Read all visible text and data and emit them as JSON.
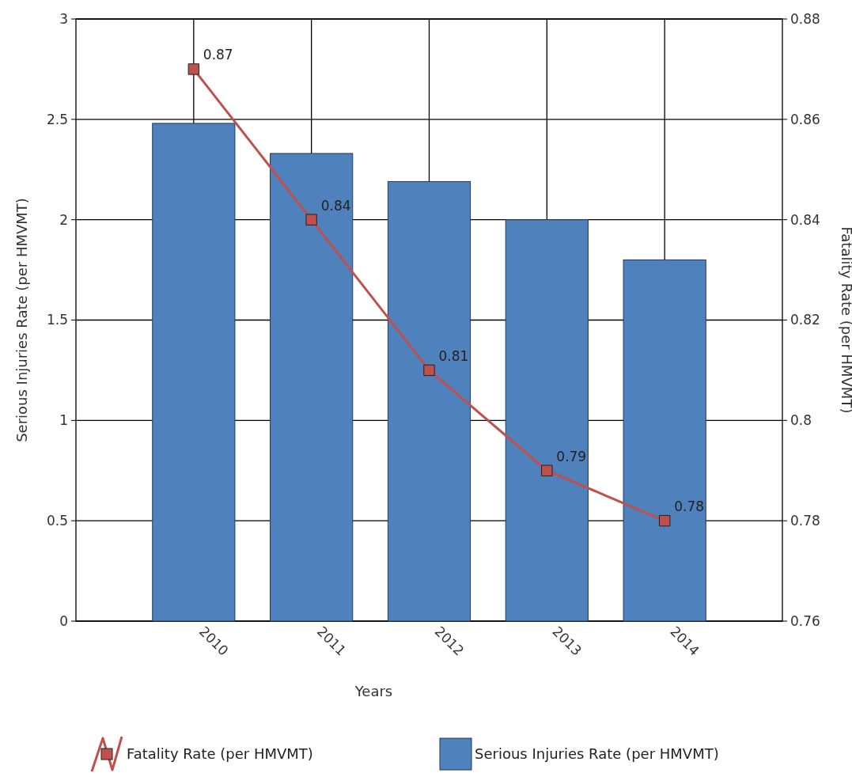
{
  "chart_data": {
    "type": "bar",
    "xlabel": "Years",
    "ylabel": "Serious Injuries Rate (per HMVMT)",
    "y2label": "Fatality Rate (per HMVMT)",
    "categories": [
      "2010",
      "2011",
      "2012",
      "2013",
      "2014"
    ],
    "series": [
      {
        "name": "Fatality Rate (per HMVMT)",
        "type": "line",
        "axis": "y2",
        "color": "#c0504d",
        "values": [
          0.87,
          0.84,
          0.81,
          0.79,
          0.78
        ],
        "value_labels": [
          "0.87",
          "0.84",
          "0.81",
          "0.79",
          "0.78"
        ],
        "marker": "square"
      },
      {
        "name": "Serious Injuries Rate (per HMVMT)",
        "color": "#4f81bd",
        "values": [
          2.48,
          2.33,
          2.19,
          2.0,
          1.8
        ]
      }
    ],
    "ylim": [
      0,
      3
    ],
    "yticks": [
      0,
      0.5,
      1,
      1.5,
      2,
      2.5,
      3
    ],
    "y2lim": [
      0.76,
      0.88
    ],
    "y2ticks": [
      0.76,
      0.78,
      0.8,
      0.82,
      0.84,
      0.86,
      0.88
    ],
    "grid": true,
    "legend": "bottom"
  }
}
